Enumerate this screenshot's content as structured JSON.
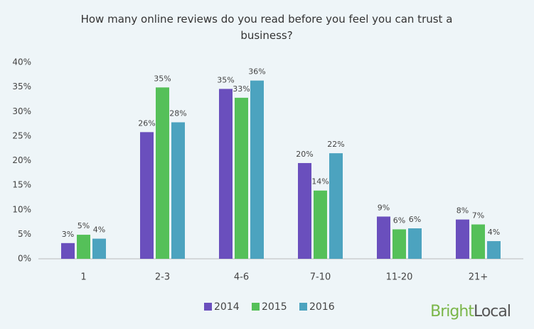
{
  "chart_data": {
    "type": "bar",
    "title": "How many online reviews do you read before you feel you can trust a business?",
    "categories": [
      "1",
      "2-3",
      "4-6",
      "7-10",
      "11-20",
      "21+"
    ],
    "series": [
      {
        "name": "2014",
        "color": "#6a4fbd",
        "values": [
          3.2,
          25.8,
          34.6,
          19.5,
          8.6,
          8.0
        ],
        "value_labels": [
          "3%",
          "26%",
          "35%",
          "20%",
          "9%",
          "8%"
        ]
      },
      {
        "name": "2015",
        "color": "#55c059",
        "values": [
          4.9,
          34.9,
          32.8,
          13.9,
          6.0,
          7.0
        ],
        "value_labels": [
          "5%",
          "35%",
          "33%",
          "14%",
          "6%",
          "7%"
        ]
      },
      {
        "name": "2016",
        "color": "#4ca3bf",
        "values": [
          4.1,
          27.8,
          36.3,
          21.5,
          6.2,
          3.6
        ],
        "value_labels": [
          "4%",
          "28%",
          "36%",
          "22%",
          "6%",
          "4%"
        ]
      }
    ],
    "ylim": [
      0,
      40
    ],
    "yticks": [
      {
        "value": 0,
        "label": "0%"
      },
      {
        "value": 5,
        "label": "5%"
      },
      {
        "value": 10,
        "label": "10%"
      },
      {
        "value": 15,
        "label": "15%"
      },
      {
        "value": 20,
        "label": "20%"
      },
      {
        "value": 25,
        "label": "25%"
      },
      {
        "value": 30,
        "label": "30%"
      },
      {
        "value": 35,
        "label": "35%"
      },
      {
        "value": 40,
        "label": "40%"
      }
    ],
    "grid": false,
    "legend": "bottom",
    "logo": [
      "Bright",
      "Local"
    ]
  }
}
